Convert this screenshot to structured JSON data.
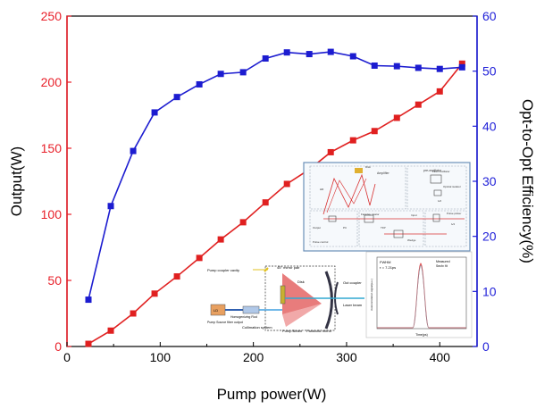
{
  "chart_data": {
    "type": "line",
    "xlabel": "Pump power(W)",
    "ylabel_left": "Output(W)",
    "ylabel_right": "Opt-to-Opt Efficiency(%)",
    "xlim": [
      0,
      440
    ],
    "ylim_left": [
      0,
      250
    ],
    "ylim_right": [
      0,
      60
    ],
    "xticks": [
      "0",
      "100",
      "200",
      "300",
      "400"
    ],
    "yticks_left": [
      "0",
      "50",
      "100",
      "150",
      "200",
      "250"
    ],
    "yticks_right": [
      "0",
      "10",
      "20",
      "30",
      "40",
      "50",
      "60"
    ],
    "colors": {
      "left_axis": "#e8202a",
      "right_axis": "#1f1fd8",
      "output_series": "#e02020",
      "efficiency_series": "#1c1cd0"
    },
    "series": [
      {
        "name": "Output",
        "axis": "left",
        "marker": "square",
        "x": [
          23,
          47,
          71,
          94,
          118,
          142,
          165,
          189,
          213,
          236,
          260,
          283,
          307,
          330,
          354,
          377,
          400,
          424
        ],
        "values": [
          2,
          12,
          25,
          40,
          53,
          67,
          81,
          94,
          109,
          123,
          134,
          147,
          156,
          163,
          173,
          183,
          193,
          214
        ]
      },
      {
        "name": "Opt-to-Opt Efficiency",
        "axis": "right",
        "marker": "square",
        "x": [
          23,
          47,
          71,
          94,
          118,
          142,
          165,
          189,
          213,
          236,
          260,
          283,
          307,
          330,
          354,
          377,
          400,
          424
        ],
        "values": [
          8.5,
          25.5,
          35.5,
          42.5,
          45.3,
          47.6,
          49.5,
          49.8,
          52.3,
          53.4,
          53.1,
          53.5,
          52.7,
          51.0,
          50.9,
          50.6,
          50.4,
          50.7
        ]
      }
    ],
    "insets": {
      "top_right": {
        "labels": [
          "Amplifier",
          "pre-oscillator",
          "Fiber oscillator",
          "Optical isolator",
          "Pulse picker",
          "Pulse control",
          "Faraday rotator",
          "Output",
          "Input",
          "Disk",
          "Wedge",
          "HR",
          "TFP",
          "PC",
          "λ/2",
          "λ/4"
        ]
      },
      "bottom_left": {
        "labels": [
          "Pump coupler cavity",
          "45° mirror pair",
          "Disk",
          "Out coupler",
          "Laser beam",
          "Pump Beam",
          "Parabolic mirror",
          "Pump Source fiber output",
          "Homogenizing Rod",
          "Collimation system",
          "LD"
        ]
      },
      "bottom_right": {
        "labels": [
          "FWHM",
          "τ = 7.21ps",
          "Measured",
          "Sech² fit",
          "Autocorrelation signal(a.u.)",
          "Time(ps)"
        ]
      }
    }
  }
}
